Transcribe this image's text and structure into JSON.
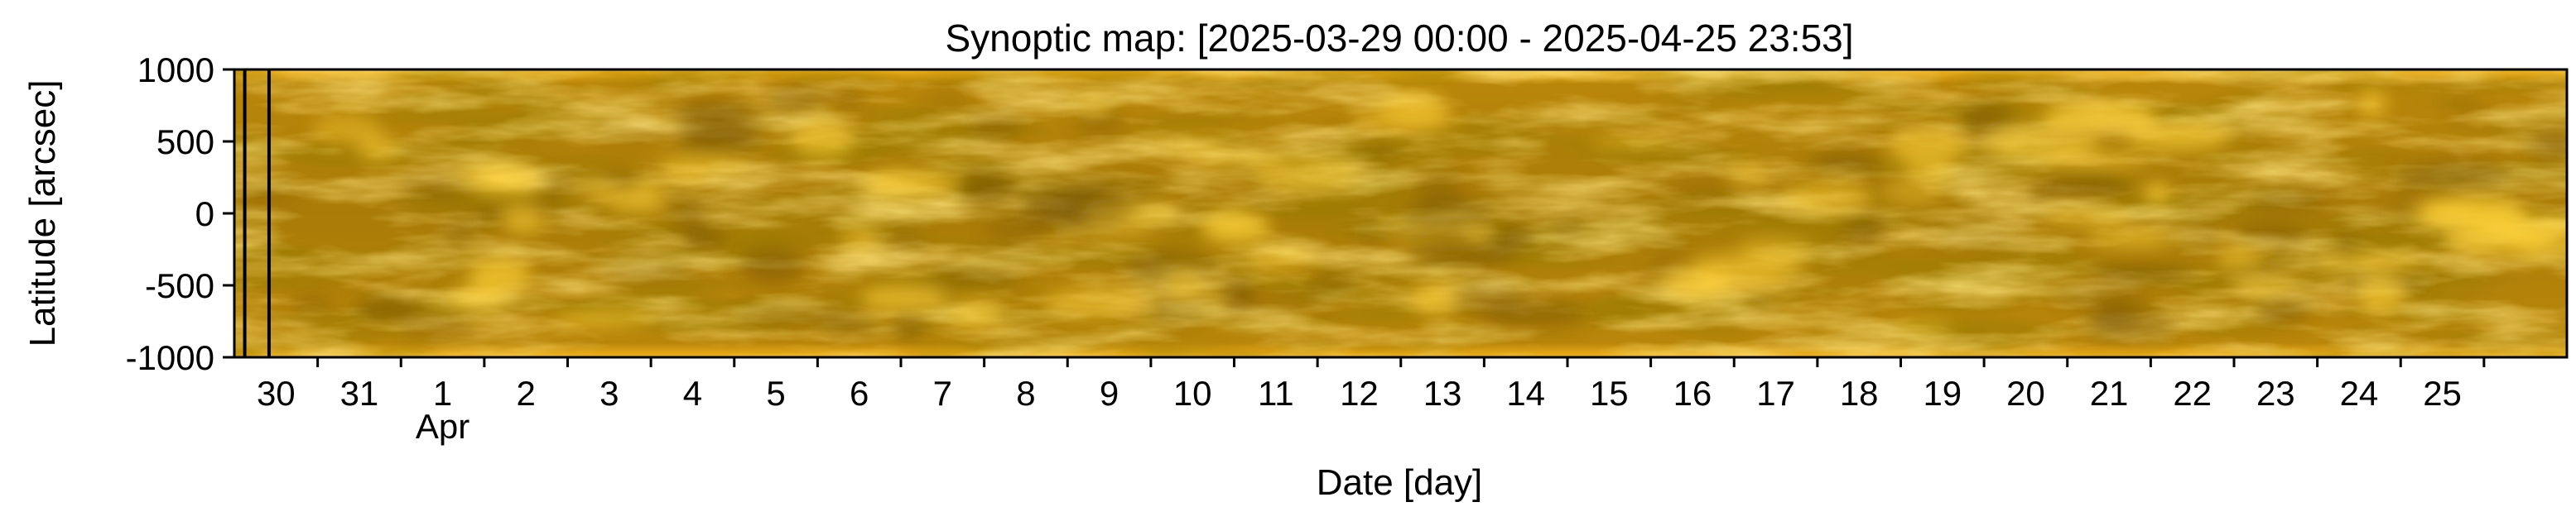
{
  "chart_data": {
    "type": "heatmap",
    "title": "Synoptic map: [2025-03-29 00:00 - 2025-04-25 23:53]",
    "xlabel": "Date [day]",
    "ylabel": "Latitude [arcsec]",
    "xlim": [
      "2025-03-29 00:00",
      "2025-04-25 23:53"
    ],
    "ylim": [
      -1000,
      1000
    ],
    "y_ticks": [
      1000,
      500,
      0,
      -500,
      -1000
    ],
    "y_tick_labels": [
      "1000",
      "500",
      "0",
      "-500",
      "-1000"
    ],
    "x_ticks": [
      "2025-03-30",
      "2025-03-31",
      "2025-04-01",
      "2025-04-02",
      "2025-04-03",
      "2025-04-04",
      "2025-04-05",
      "2025-04-06",
      "2025-04-07",
      "2025-04-08",
      "2025-04-09",
      "2025-04-10",
      "2025-04-11",
      "2025-04-12",
      "2025-04-13",
      "2025-04-14",
      "2025-04-15",
      "2025-04-16",
      "2025-04-17",
      "2025-04-18",
      "2025-04-19",
      "2025-04-20",
      "2025-04-21",
      "2025-04-22",
      "2025-04-23",
      "2025-04-24",
      "2025-04-25"
    ],
    "x_tick_labels": [
      "30",
      "31",
      "1",
      "2",
      "3",
      "4",
      "5",
      "6",
      "7",
      "8",
      "9",
      "10",
      "11",
      "12",
      "13",
      "14",
      "15",
      "16",
      "17",
      "18",
      "19",
      "20",
      "21",
      "22",
      "23",
      "24",
      "25"
    ],
    "month_labels": [
      {
        "date": "2025-04-01",
        "label": "Apr"
      }
    ],
    "colormap": "solar EUV gold",
    "colors": {
      "dark": "#6b4a00",
      "base": "#b88a08",
      "bright": "#ffd23a",
      "highlight": "#fff2a8",
      "gap_line": "#000000"
    },
    "data_gaps": [
      "2025-03-29 03:00",
      "2025-03-29 10:00"
    ],
    "grid": false
  }
}
